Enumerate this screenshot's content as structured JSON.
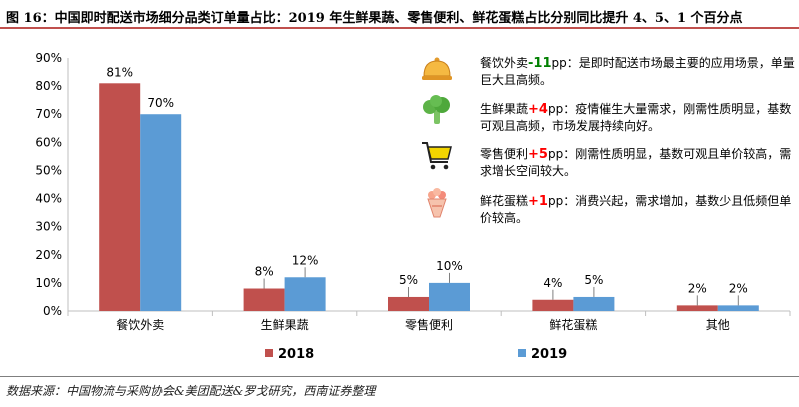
{
  "title": "图 16：中国即时配送市场细分品类订单量占比：2019 年生鲜果蔬、零售便利、鲜花蛋糕占比分别同比提升 4、5、1 个百分点",
  "source": "数据来源：中国物流与采购协会&美团配送&罗戈研究，西南证券整理",
  "chart_data": {
    "type": "bar",
    "title": "中国即时配送市场细分品类订单量占比",
    "categories": [
      "餐饮外卖",
      "生鲜果蔬",
      "零售便利",
      "鲜花蛋糕",
      "其他"
    ],
    "series": [
      {
        "name": "2018",
        "values": [
          81,
          8,
          5,
          4,
          2
        ],
        "labels": [
          "81%",
          "8%",
          "5%",
          "4%",
          "2%"
        ],
        "color": "#c0504d"
      },
      {
        "name": "2019",
        "values": [
          70,
          12,
          10,
          5,
          2
        ],
        "labels": [
          "70%",
          "12%",
          "10%",
          "5%",
          "2%"
        ],
        "color": "#5b9bd5"
      }
    ],
    "ylim": [
      0,
      90
    ],
    "yticks": [
      0,
      10,
      20,
      30,
      40,
      50,
      60,
      70,
      80,
      90
    ],
    "ytick_labels": [
      "0%",
      "10%",
      "20%",
      "30%",
      "40%",
      "50%",
      "60%",
      "70%",
      "80%",
      "90%"
    ],
    "xlabel": "",
    "ylabel": "",
    "grid": false,
    "legend_position": "bottom"
  },
  "annotations": [
    {
      "icon": "cloche-icon",
      "category": "餐饮外卖",
      "change": "-11",
      "unit": "pp",
      "direction": "down",
      "text": "：是即时配送市场最主要的应用场景，单量巨大且高频。"
    },
    {
      "icon": "broccoli-icon",
      "category": "生鲜果蔬",
      "change": "+4",
      "unit": "pp",
      "direction": "up",
      "text": "：疫情催生大量需求，刚需性质明显，基数可观且高频，市场发展持续向好。"
    },
    {
      "icon": "shopping-cart-icon",
      "category": "零售便利",
      "change": "+5",
      "unit": "pp",
      "direction": "up",
      "text": "：刚需性质明显，基数可观且单价较高，需求增长空间较大。"
    },
    {
      "icon": "flower-bouquet-icon",
      "category": "鲜花蛋糕",
      "change": "+1",
      "unit": "pp",
      "direction": "up",
      "text": "：消费兴起，需求增加，基数少且低频但单价较高。"
    }
  ],
  "colors": {
    "accent": "#c0504d",
    "series_2018": "#c0504d",
    "series_2019": "#5b9bd5",
    "increase": "#ff0000",
    "decrease": "#008000"
  }
}
